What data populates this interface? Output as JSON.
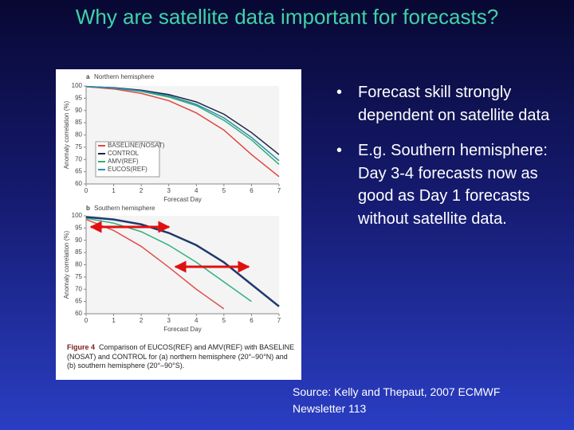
{
  "title": "Why are satellite data important for forecasts?",
  "bullets": [
    "Forecast skill strongly dependent on satellite data",
    "E.g. Southern hemisphere: Day 3-4 forecasts now as good as Day 1 forecasts without satellite data."
  ],
  "source": "Source: Kelly and Thepaut, 2007 ECMWF Newsletter 113",
  "figure_caption": {
    "label": "Figure 4",
    "text": "Comparison of EUCOS(REF) and AMV(REF) with BASELINE (NOSAT) and CONTROL for (a) northern hemisphere (20°–90°N) and (b) southern hemisphere (20°–90°S)."
  },
  "chart_data": [
    {
      "type": "line",
      "panel": "a",
      "title": "Northern hemisphere",
      "x_label": "Forecast Day",
      "y_label": "Anomaly correlation (%)",
      "x": [
        0,
        1,
        2,
        3,
        4,
        5,
        6,
        7
      ],
      "xlim": [
        0,
        7
      ],
      "xticks": [
        0,
        1,
        2,
        3,
        4,
        5,
        6,
        7
      ],
      "ylim": [
        60,
        100
      ],
      "yticks": [
        60,
        65,
        70,
        75,
        80,
        85,
        90,
        95,
        100
      ],
      "grid": false,
      "legend": "lower left",
      "series": [
        {
          "name": "BASELINE(NOSAT)",
          "color": "#e0463f",
          "values": [
            99.7,
            98.8,
            97,
            94,
            89,
            82,
            72,
            63
          ]
        },
        {
          "name": "CONTROL",
          "color": "#1c2540",
          "values": [
            99.8,
            99.3,
            98.3,
            96.5,
            93.5,
            88.5,
            81,
            72
          ]
        },
        {
          "name": "AMV(REF)",
          "color": "#2fae72",
          "values": [
            99.8,
            99.1,
            97.8,
            95.5,
            92,
            86,
            78,
            68
          ]
        },
        {
          "name": "EUCOS(REF)",
          "color": "#2a8cb4",
          "values": [
            99.8,
            99.2,
            98,
            96,
            92.5,
            87,
            79,
            69.5
          ]
        }
      ]
    },
    {
      "type": "line",
      "panel": "b",
      "title": "Southern hemisphere",
      "x_label": "Forecast Day",
      "y_label": "Anomaly correlation (%)",
      "x": [
        0,
        1,
        2,
        3,
        4,
        5,
        6,
        7
      ],
      "xlim": [
        0,
        7
      ],
      "xticks": [
        0,
        1,
        2,
        3,
        4,
        5,
        6,
        7
      ],
      "ylim": [
        60,
        100
      ],
      "yticks": [
        60,
        65,
        70,
        75,
        80,
        85,
        90,
        95,
        100
      ],
      "grid": false,
      "series": [
        {
          "color": "#e0504c",
          "values": [
            98.5,
            94,
            87.5,
            79,
            70,
            62,
            null,
            null
          ]
        },
        {
          "color": "#31b183",
          "values": [
            99,
            97,
            93.5,
            88,
            81,
            73,
            65,
            null
          ]
        },
        {
          "color": "#1f3a6c",
          "values": [
            99.5,
            98.5,
            96.5,
            93,
            88,
            81,
            72,
            63
          ]
        }
      ]
    }
  ]
}
